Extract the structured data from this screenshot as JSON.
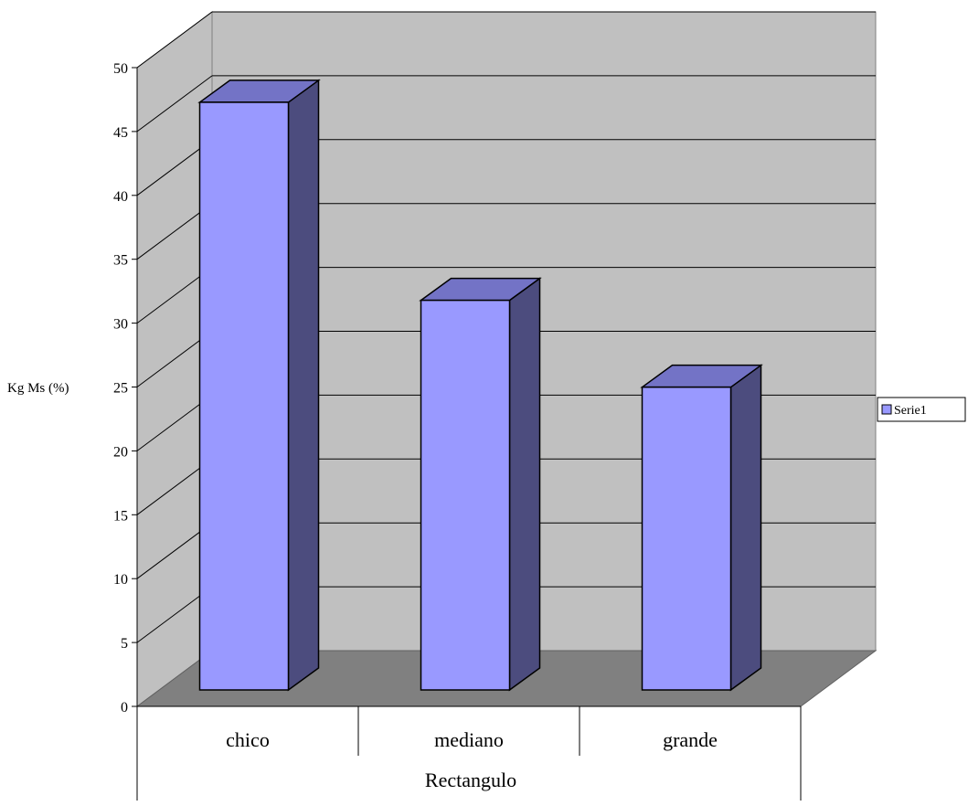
{
  "chart_data": {
    "type": "bar",
    "categories": [
      "chico",
      "mediano",
      "grande"
    ],
    "series": [
      {
        "name": "Serie1",
        "values": [
          46,
          30.5,
          23.7
        ]
      }
    ],
    "ylabel": "Kg Ms (%)",
    "xlabel": "Rectangulo",
    "ylim": [
      0,
      50
    ],
    "ytick_labels": [
      "0",
      "5",
      "10",
      "15",
      "20",
      "25",
      "30",
      "35",
      "40",
      "45",
      "50"
    ],
    "grid": true,
    "legend_position": "right",
    "colors": {
      "bar_front": "#9999ff",
      "bar_side": "#4c4c7e",
      "bar_top": "#7373c6",
      "back_wall": "#c0c0c0",
      "side_wall": "#c0c0c0",
      "floor": "#808080"
    }
  }
}
